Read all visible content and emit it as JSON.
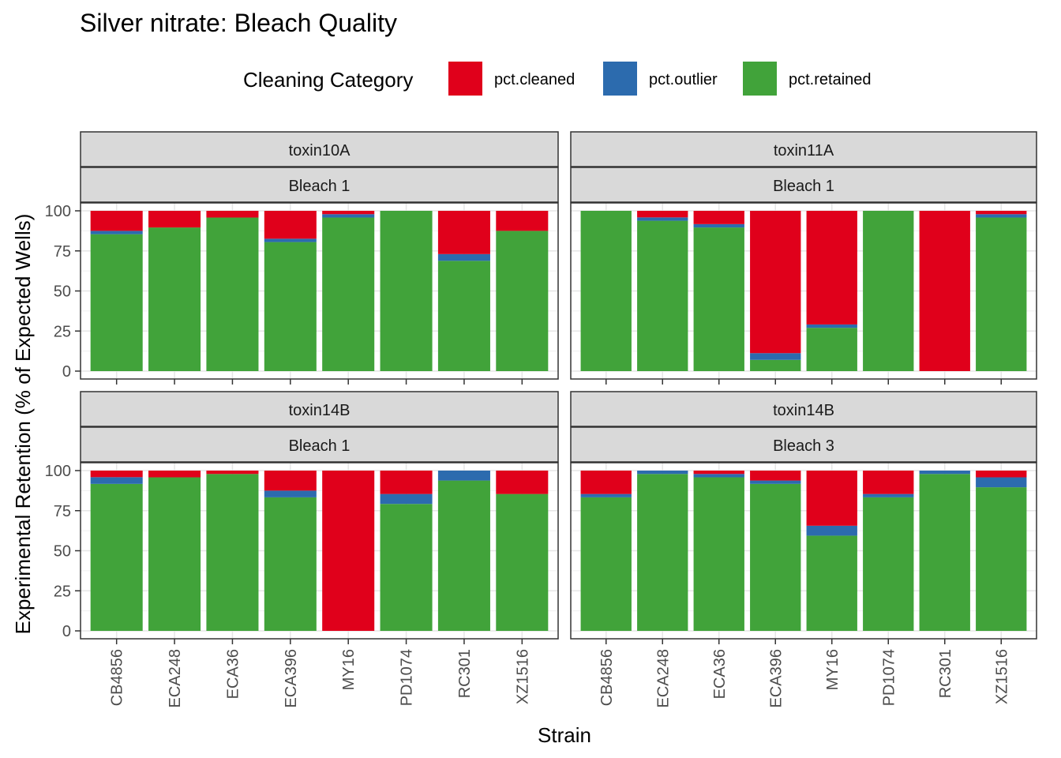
{
  "chart_data": {
    "type": "bar",
    "stacked": true,
    "title": "Silver nitrate: Bleach Quality",
    "xlabel": "Strain",
    "ylabel": "Experimental Retention (% of Expected Wells)",
    "ylim": [
      0,
      100
    ],
    "yticks": [
      0,
      25,
      50,
      75,
      100
    ],
    "legend": {
      "title": "Cleaning Category",
      "position": "top",
      "entries": [
        {
          "name": "pct.cleaned",
          "color": "#E0001B"
        },
        {
          "name": "pct.outlier",
          "color": "#2C6BAE"
        },
        {
          "name": "pct.retained",
          "color": "#41A33A"
        }
      ]
    },
    "categories": [
      "CB4856",
      "ECA248",
      "ECA36",
      "ECA396",
      "MY16",
      "PD1074",
      "RC301",
      "XZ1516"
    ],
    "panels": [
      {
        "strip_top": "toxin10A",
        "strip_bottom": "Bleach 1",
        "series": [
          {
            "name": "pct.retained",
            "values": [
              85.4,
              89.6,
              95.8,
              80.5,
              95.8,
              100,
              68.8,
              87.5
            ]
          },
          {
            "name": "pct.outlier",
            "values": [
              2.1,
              0,
              0,
              2.1,
              2.1,
              0,
              4.2,
              0
            ]
          },
          {
            "name": "pct.cleaned",
            "values": [
              12.5,
              10.4,
              4.2,
              17.4,
              2.1,
              0,
              27.0,
              12.5
            ]
          }
        ]
      },
      {
        "strip_top": "toxin11A",
        "strip_bottom": "Bleach 1",
        "series": [
          {
            "name": "pct.retained",
            "values": [
              100,
              93.8,
              89.6,
              7.0,
              27.0,
              100,
              0,
              95.8
            ]
          },
          {
            "name": "pct.outlier",
            "values": [
              0,
              2.1,
              2.1,
              4.2,
              2.1,
              0,
              0,
              2.1
            ]
          },
          {
            "name": "pct.cleaned",
            "values": [
              0,
              4.1,
              8.3,
              88.8,
              70.9,
              0,
              100,
              2.1
            ]
          }
        ]
      },
      {
        "strip_top": "toxin14B",
        "strip_bottom": "Bleach 1",
        "series": [
          {
            "name": "pct.retained",
            "values": [
              91.7,
              95.8,
              97.9,
              83.3,
              0,
              79.2,
              93.8,
              85.4
            ]
          },
          {
            "name": "pct.outlier",
            "values": [
              4.2,
              0,
              0,
              4.2,
              0,
              6.2,
              6.2,
              0
            ]
          },
          {
            "name": "pct.cleaned",
            "values": [
              4.1,
              4.2,
              2.1,
              12.5,
              100,
              14.6,
              0,
              14.6
            ]
          }
        ]
      },
      {
        "strip_top": "toxin14B",
        "strip_bottom": "Bleach 3",
        "series": [
          {
            "name": "pct.retained",
            "values": [
              83.3,
              97.9,
              95.8,
              91.7,
              59.4,
              83.3,
              97.9,
              89.6
            ]
          },
          {
            "name": "pct.outlier",
            "values": [
              2.1,
              2.1,
              2.1,
              2.1,
              6.2,
              2.1,
              2.1,
              6.2
            ]
          },
          {
            "name": "pct.cleaned",
            "values": [
              14.6,
              0,
              2.1,
              6.2,
              34.4,
              14.6,
              0,
              4.2
            ]
          }
        ]
      }
    ]
  }
}
